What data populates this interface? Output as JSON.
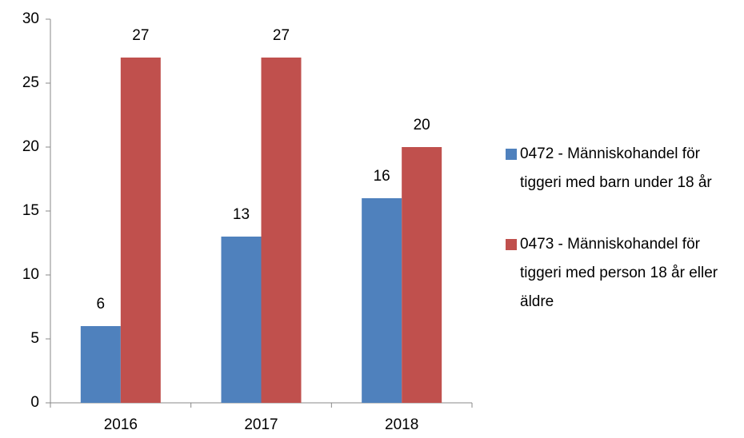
{
  "chart_data": {
    "type": "bar",
    "categories": [
      "2016",
      "2017",
      "2018"
    ],
    "series": [
      {
        "name": "0472 - Människohandel för tiggeri med barn under 18 år",
        "color": "#4f81bd",
        "values": [
          6,
          13,
          16
        ]
      },
      {
        "name": "0473 - Människohandel för tiggeri med person 18 år eller äldre",
        "color": "#c0504d",
        "values": [
          27,
          27,
          20
        ]
      }
    ],
    "ylim": [
      0,
      30
    ],
    "yticks": [
      0,
      5,
      10,
      15,
      20,
      25,
      30
    ],
    "grid": false,
    "legend": "right",
    "data_labels": true
  }
}
